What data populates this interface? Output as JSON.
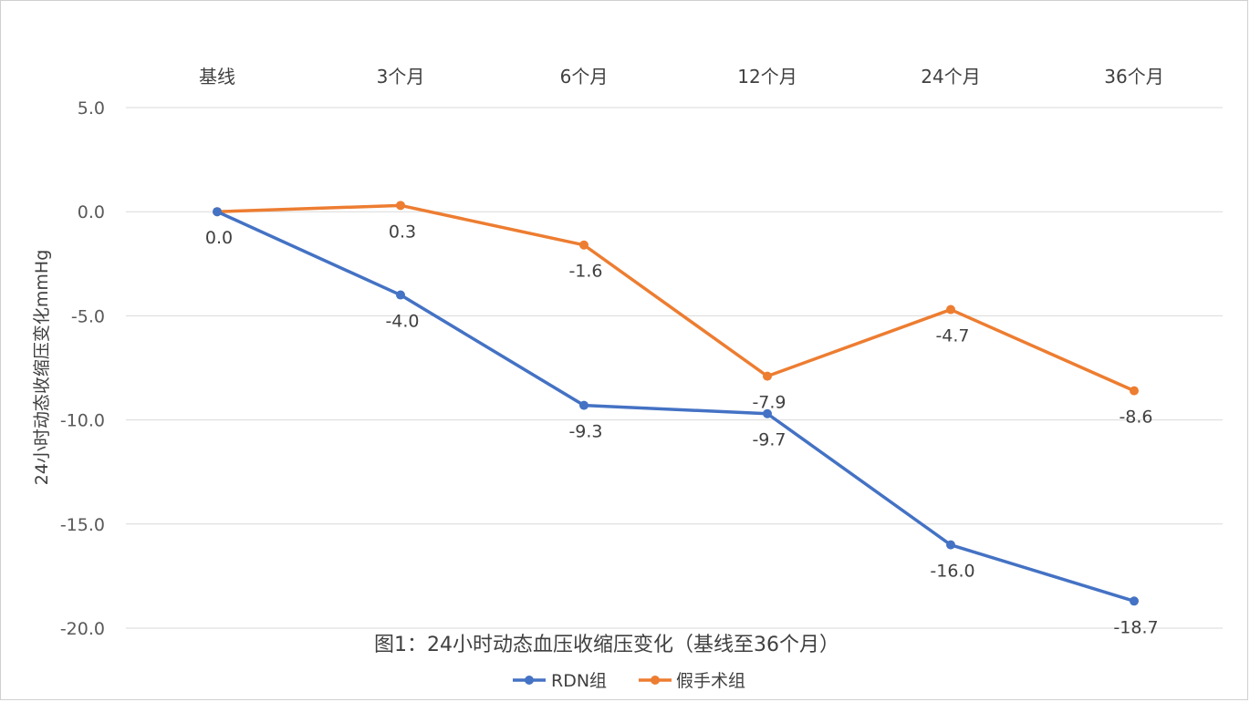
{
  "chart_data": {
    "type": "line",
    "title": "图1：24小时动态血压收缩压变化（基线至36个月）",
    "xlabel": "",
    "ylabel": "24小时动态收缩压变化mmHg",
    "categories": [
      "基线",
      "3个月",
      "6个月",
      "12个月",
      "24个月",
      "36个月"
    ],
    "ylim": [
      -20,
      5
    ],
    "y_ticks": [
      "5.0",
      "0.0",
      "-5.0",
      "-10.0",
      "-15.0",
      "-20.0"
    ],
    "grid": true,
    "legend_position": "bottom",
    "series": [
      {
        "name": "RDN组",
        "color": "#4472c4",
        "values": [
          0.0,
          -4.0,
          -9.3,
          -9.7,
          -16.0,
          -18.7
        ],
        "labels": [
          "0.0",
          "-4.0",
          "-9.3",
          "-9.7",
          "-16.0",
          "-18.7"
        ]
      },
      {
        "name": "假手术组",
        "color": "#ed7d31",
        "values": [
          0.0,
          0.3,
          -1.6,
          -7.9,
          -4.7,
          -8.6
        ],
        "labels": [
          "",
          "0.3",
          "-1.6",
          "-7.9",
          "-4.7",
          "-8.6"
        ]
      }
    ]
  }
}
